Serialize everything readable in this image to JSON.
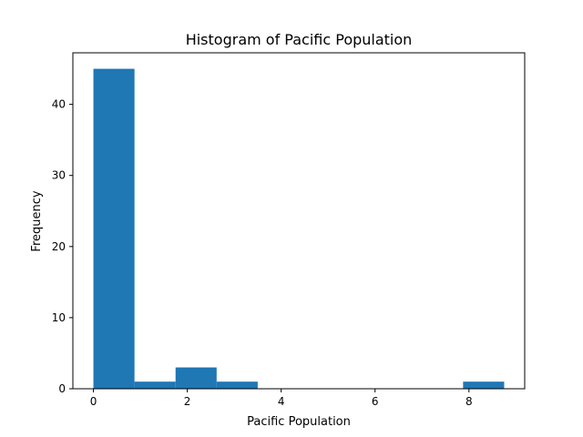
{
  "chart_data": {
    "type": "bar",
    "title": "Histogram of Pacific Population",
    "xlabel": "Pacific Population",
    "ylabel": "Frequency",
    "bins": [
      {
        "start": 0.0,
        "end": 0.875,
        "count": 45
      },
      {
        "start": 0.875,
        "end": 1.75,
        "count": 1
      },
      {
        "start": 1.75,
        "end": 2.625,
        "count": 3
      },
      {
        "start": 2.625,
        "end": 3.5,
        "count": 1
      },
      {
        "start": 3.5,
        "end": 4.375,
        "count": 0
      },
      {
        "start": 4.375,
        "end": 5.25,
        "count": 0
      },
      {
        "start": 5.25,
        "end": 6.125,
        "count": 0
      },
      {
        "start": 6.125,
        "end": 7.0,
        "count": 0
      },
      {
        "start": 7.0,
        "end": 7.875,
        "count": 0
      },
      {
        "start": 7.875,
        "end": 8.75,
        "count": 1
      }
    ],
    "xlim": [
      -0.4375,
      9.1875
    ],
    "ylim": [
      0,
      47.25
    ],
    "xticks": [
      0,
      2,
      4,
      6,
      8
    ],
    "yticks": [
      0,
      10,
      20,
      30,
      40
    ],
    "grid": false,
    "legend": "none",
    "bar_color": "#1f77b4"
  }
}
